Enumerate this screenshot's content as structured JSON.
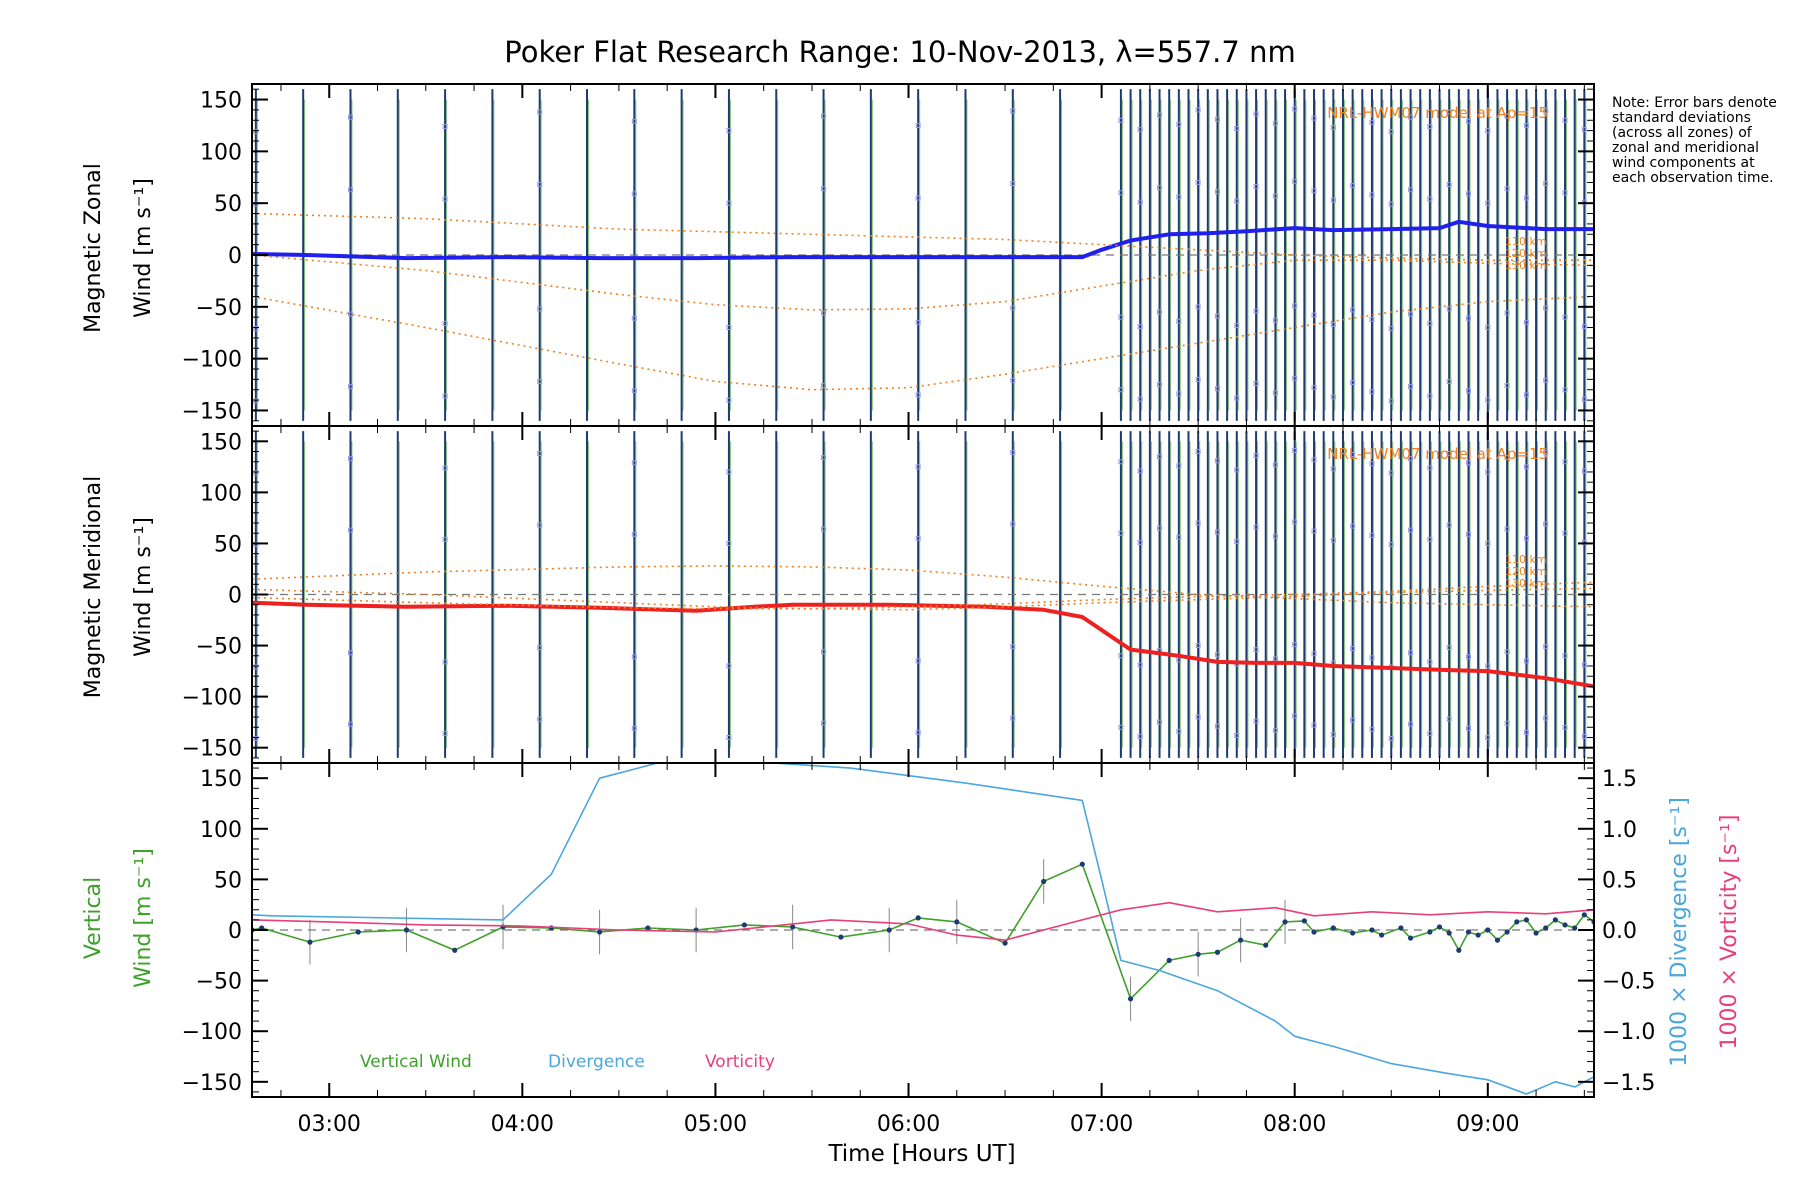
{
  "chart_data": {
    "type": "line",
    "title": "Poker Flat Research Range: 10-Nov-2013, λ=557.7 nm",
    "xlabel": "Time [Hours UT]",
    "xlim": [
      2.6,
      9.55
    ],
    "x_ticks": [
      3,
      4,
      5,
      6,
      7,
      8,
      9
    ],
    "x_tick_labels": [
      "03:00",
      "04:00",
      "05:00",
      "06:00",
      "07:00",
      "08:00",
      "09:00"
    ],
    "note": "Note: Error bars denote standard deviations (across all zones) of zonal and meridional wind components at each observation time.",
    "panels": [
      {
        "id": "zonal",
        "ylabel_line1": "Magnetic Zonal",
        "ylabel_line2": "Wind [m s⁻¹]",
        "ylim": [
          -165,
          165
        ],
        "y_ticks": [
          -150,
          -100,
          -50,
          0,
          50,
          100,
          150
        ],
        "y_tick_labels": [
          "−150",
          "−100",
          "−50",
          "0",
          "50",
          "100",
          "150"
        ],
        "model_label": "NRL-HWM07 model at Ap=15",
        "altitude_labels": [
          "110 km",
          "120 km",
          "130 km"
        ],
        "series": [
          {
            "name": "Magnetic Zonal Wind",
            "color": "#2020ee",
            "x": [
              2.6,
              2.88,
              3.4,
              3.9,
              4.4,
              4.9,
              5.4,
              5.9,
              6.4,
              6.9,
              7.0,
              7.15,
              7.35,
              7.55,
              7.75,
              8.0,
              8.2,
              8.5,
              8.75,
              8.85,
              9.0,
              9.3,
              9.55
            ],
            "y": [
              1,
              0,
              -3,
              -2,
              -3,
              -3,
              -2,
              -2,
              -2,
              -2,
              5,
              14,
              20,
              21,
              23,
              26,
              24,
              25,
              26,
              32,
              28,
              25,
              25
            ]
          },
          {
            "name": "NRL-HWM07 110 km",
            "color": "#f08020",
            "dotted": true,
            "x": [
              2.6,
              3.5,
              4.5,
              5.5,
              6.5,
              7.0,
              7.5,
              8.0,
              8.5,
              9.0,
              9.55
            ],
            "y": [
              40,
              35,
              25,
              20,
              15,
              10,
              5,
              0,
              -3,
              -5,
              -5
            ]
          },
          {
            "name": "NRL-HWM07 120 km",
            "color": "#f08020",
            "dotted": true,
            "x": [
              2.6,
              3.5,
              4.5,
              5.0,
              5.5,
              6.0,
              6.5,
              7.0,
              7.5,
              8.0,
              8.5,
              9.0,
              9.55
            ],
            "y": [
              0,
              -15,
              -38,
              -48,
              -53,
              -52,
              -45,
              -30,
              -15,
              -5,
              -5,
              -8,
              -10
            ]
          },
          {
            "name": "NRL-HWM07 130 km",
            "color": "#f08020",
            "dotted": true,
            "x": [
              2.6,
              3.5,
              4.5,
              5.0,
              5.5,
              6.0,
              6.5,
              7.0,
              7.5,
              8.0,
              8.5,
              9.0,
              9.55
            ],
            "y": [
              -40,
              -70,
              -105,
              -122,
              -130,
              -128,
              -115,
              -100,
              -85,
              -70,
              -55,
              -45,
              -40
            ]
          }
        ]
      },
      {
        "id": "meridional",
        "ylabel_line1": "Magnetic Meridional",
        "ylabel_line2": "Wind [m s⁻¹]",
        "ylim": [
          -165,
          165
        ],
        "y_ticks": [
          -150,
          -100,
          -50,
          0,
          50,
          100,
          150
        ],
        "y_tick_labels": [
          "−150",
          "−100",
          "−50",
          "0",
          "50",
          "100",
          "150"
        ],
        "model_label": "NRL-HWM07 model at Ap=15",
        "altitude_labels": [
          "110 km",
          "120 km",
          "130 km"
        ],
        "series": [
          {
            "name": "Magnetic Meridional Wind",
            "color": "#ee2020",
            "x": [
              2.6,
              2.88,
              3.4,
              3.9,
              4.4,
              4.9,
              5.2,
              5.4,
              5.9,
              6.4,
              6.7,
              6.9,
              7.15,
              7.4,
              7.6,
              7.8,
              8.0,
              8.2,
              8.5,
              8.8,
              9.0,
              9.3,
              9.55
            ],
            "y": [
              -8,
              -10,
              -12,
              -11,
              -13,
              -16,
              -12,
              -10,
              -10,
              -12,
              -15,
              -22,
              -54,
              -60,
              -66,
              -67,
              -67,
              -70,
              -72,
              -74,
              -75,
              -82,
              -90
            ]
          },
          {
            "name": "NRL-HWM07 110 km",
            "color": "#f08020",
            "dotted": true,
            "x": [
              2.6,
              3.5,
              4.5,
              5.0,
              5.5,
              6.0,
              6.5,
              7.0,
              7.5,
              8.0,
              8.5,
              9.0,
              9.55
            ],
            "y": [
              -3,
              -8,
              -13,
              -14,
              -14,
              -12,
              -9,
              -5,
              -2,
              0,
              3,
              8,
              12
            ]
          },
          {
            "name": "NRL-HWM07 120 km",
            "color": "#f08020",
            "dotted": true,
            "x": [
              2.6,
              3.5,
              4.5,
              5.0,
              5.5,
              6.0,
              6.5,
              7.0,
              7.5,
              8.0,
              8.5,
              9.0,
              9.55
            ],
            "y": [
              15,
              22,
              27,
              28,
              27,
              24,
              17,
              8,
              0,
              -4,
              -8,
              -10,
              -12
            ]
          },
          {
            "name": "NRL-HWM07 130 km",
            "color": "#f08020",
            "dotted": true,
            "x": [
              2.6,
              3.5,
              4.5,
              5.0,
              5.5,
              6.0,
              6.5,
              7.0,
              7.5,
              8.0,
              8.5,
              9.0,
              9.55
            ],
            "y": [
              5,
              0,
              -8,
              -12,
              -14,
              -15,
              -12,
              -8,
              -5,
              -2,
              2,
              4,
              6
            ]
          }
        ]
      },
      {
        "id": "vertical",
        "ylabel_line1": "Vertical",
        "ylabel_line2": "Wind [m s⁻¹]",
        "ylim": [
          -165,
          165
        ],
        "y_ticks": [
          -150,
          -100,
          -50,
          0,
          50,
          100,
          150
        ],
        "y_tick_labels": [
          "−150",
          "−100",
          "−50",
          "0",
          "50",
          "100",
          "150"
        ],
        "right_axis": {
          "label1": "1000 × Divergence [s⁻¹]",
          "label2": "1000 × Vorticity [s⁻¹]",
          "ylim": [
            -1.65,
            1.65
          ],
          "ticks": [
            -1.5,
            -1.0,
            -0.5,
            0.0,
            0.5,
            1.0,
            1.5
          ],
          "tick_labels": [
            "−1.5",
            "−1.0",
            "−0.5",
            "0.0",
            "0.5",
            "1.0",
            "1.5"
          ]
        },
        "legend": [
          "Vertical Wind",
          "Divergence",
          "Vorticity"
        ],
        "series": [
          {
            "name": "Vertical Wind",
            "color": "#3fa02a",
            "axis": "left",
            "markers": true,
            "x": [
              2.6,
              2.65,
              2.9,
              3.15,
              3.4,
              3.65,
              3.9,
              4.15,
              4.4,
              4.65,
              4.9,
              5.15,
              5.4,
              5.65,
              5.9,
              6.05,
              6.25,
              6.5,
              6.7,
              6.9,
              7.15,
              7.35,
              7.5,
              7.6,
              7.72,
              7.85,
              7.95,
              8.05,
              8.1,
              8.2,
              8.3,
              8.4,
              8.45,
              8.55,
              8.6,
              8.7,
              8.75,
              8.8,
              8.85,
              8.9,
              8.95,
              9.0,
              9.05,
              9.1,
              9.15,
              9.2,
              9.25,
              9.3,
              9.35,
              9.4,
              9.45,
              9.5,
              9.55
            ],
            "y": [
              0,
              2,
              -12,
              -2,
              0,
              -20,
              3,
              2,
              -2,
              2,
              0,
              5,
              3,
              -7,
              0,
              12,
              8,
              -13,
              48,
              65,
              -68,
              -30,
              -24,
              -22,
              -10,
              -15,
              8,
              9,
              -2,
              2,
              -3,
              0,
              -5,
              2,
              -8,
              -2,
              3,
              -3,
              -20,
              -2,
              -5,
              0,
              -10,
              -2,
              8,
              10,
              -3,
              2,
              10,
              5,
              2,
              15,
              8
            ]
          },
          {
            "name": "Divergence",
            "color": "#4aa6dd",
            "axis": "right",
            "x": [
              2.6,
              2.7,
              3.9,
              4.15,
              4.4,
              4.7,
              5.3,
              5.7,
              6.3,
              6.9,
              7.0,
              7.1,
              7.3,
              7.6,
              7.9,
              8.0,
              8.2,
              8.5,
              8.8,
              9.0,
              9.2,
              9.35,
              9.45,
              9.55
            ],
            "y": [
              0.15,
              0.14,
              0.1,
              0.55,
              1.5,
              1.65,
              1.65,
              1.6,
              1.45,
              1.28,
              0.5,
              -0.3,
              -0.4,
              -0.6,
              -0.9,
              -1.05,
              -1.15,
              -1.32,
              -1.42,
              -1.48,
              -1.62,
              -1.5,
              -1.55,
              -1.45
            ]
          },
          {
            "name": "Vorticity",
            "color": "#e83f78",
            "axis": "right",
            "x": [
              2.6,
              3.0,
              3.5,
              4.0,
              4.5,
              5.0,
              5.6,
              6.0,
              6.25,
              6.5,
              6.8,
              7.1,
              7.35,
              7.6,
              7.9,
              8.1,
              8.4,
              8.7,
              9.0,
              9.3,
              9.55
            ],
            "y": [
              0.1,
              0.08,
              0.05,
              0.04,
              0.0,
              -0.02,
              0.1,
              0.06,
              -0.05,
              -0.1,
              0.05,
              0.2,
              0.27,
              0.18,
              0.22,
              0.14,
              0.18,
              0.15,
              0.18,
              0.16,
              0.2
            ]
          }
        ]
      }
    ]
  }
}
